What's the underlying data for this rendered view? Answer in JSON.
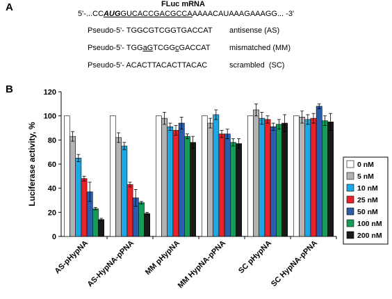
{
  "panel_a": {
    "label": "A",
    "title": "FLuc mRNA",
    "mrna": {
      "prefix": "5'-...CC",
      "start_codon": "AUG",
      "target": "GUCACCGACGCCA",
      "suffix": "AAAACAUAAAGAAAGG... -3'"
    },
    "probes": [
      {
        "prefix": "Pseudo-5'- ",
        "seq_parts": [
          {
            "t": "TGGCGTCGGTGACCAT",
            "u": false
          }
        ],
        "label": "antisense (AS)"
      },
      {
        "prefix": "Pseudo-5'- ",
        "seq_parts": [
          {
            "t": "TGG",
            "u": false
          },
          {
            "t": "aG",
            "u": true
          },
          {
            "t": "TCGG",
            "u": false
          },
          {
            "t": "c",
            "u": true
          },
          {
            "t": "GACCAT",
            "u": false
          }
        ],
        "label": "mismatched (MM)"
      },
      {
        "prefix": "Pseudo-5'- ",
        "seq_parts": [
          {
            "t": "ACACTTACACTTACAC",
            "u": false
          }
        ],
        "label": "scrambled  (SC)"
      }
    ]
  },
  "panel_b": {
    "label": "B"
  },
  "chart_data": {
    "type": "bar",
    "title": "",
    "xlabel": "",
    "ylabel": "Luciferase activity, %",
    "ylim": [
      0,
      120
    ],
    "yticks": [
      "0",
      "20",
      "40",
      "60",
      "80",
      "100",
      "120"
    ],
    "grid": false,
    "legend_position": "right",
    "categories": [
      "AS-pHypNA",
      "AS-HypNA-pPNA",
      "MM pHypNA",
      "MM HypNA-pPNA",
      "SC pHypNA",
      "SC HypNA-pPNA"
    ],
    "series": [
      {
        "name": "0 nM",
        "color": "#ffffff",
        "values": [
          100,
          100,
          100,
          100,
          100,
          100
        ],
        "errors": [
          0,
          0,
          0,
          0,
          0,
          0
        ]
      },
      {
        "name": "5 nM",
        "color": "#b3b3b3",
        "values": [
          83,
          82,
          98,
          94,
          105,
          99
        ],
        "errors": [
          4,
          4,
          5,
          4,
          5,
          5
        ]
      },
      {
        "name": "10 nM",
        "color": "#1aa9e6",
        "values": [
          65,
          75,
          91,
          101,
          98,
          97
        ],
        "errors": [
          3,
          3,
          3,
          4,
          5,
          4
        ]
      },
      {
        "name": "25 nM",
        "color": "#e8232a",
        "values": [
          48,
          43,
          88,
          85,
          97,
          98
        ],
        "errors": [
          2,
          2,
          4,
          3,
          3,
          4
        ]
      },
      {
        "name": "50 nM",
        "color": "#2a5ea8",
        "values": [
          37,
          32,
          94,
          85,
          91,
          108
        ],
        "errors": [
          8,
          7,
          5,
          4,
          3,
          2
        ]
      },
      {
        "name": "100 nM",
        "color": "#1a9a5a",
        "values": [
          23,
          28,
          83,
          78,
          93,
          96
        ],
        "errors": [
          1,
          1,
          2,
          3,
          4,
          4
        ]
      },
      {
        "name": "200 nM",
        "color": "#1a1a1a",
        "values": [
          14,
          19,
          78,
          77,
          94,
          95
        ],
        "errors": [
          1,
          1,
          5,
          4,
          7,
          7
        ]
      }
    ]
  }
}
